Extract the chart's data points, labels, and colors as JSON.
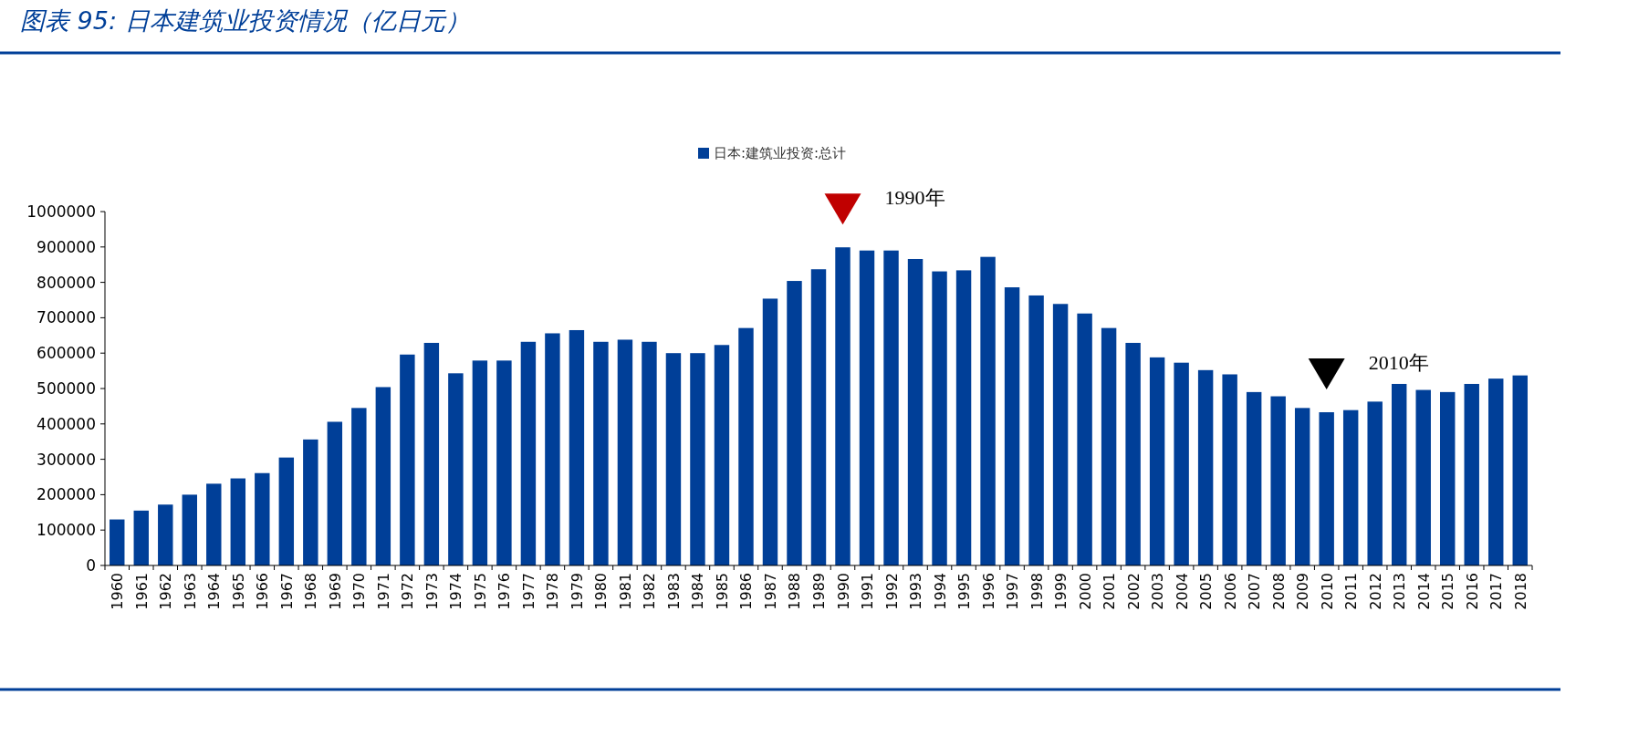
{
  "chart_data": {
    "type": "bar",
    "title": "图表 95:  日本建筑业投资情况（亿日元）",
    "categories": [
      "1960",
      "1961",
      "1962",
      "1963",
      "1964",
      "1965",
      "1966",
      "1967",
      "1968",
      "1969",
      "1970",
      "1971",
      "1972",
      "1973",
      "1974",
      "1975",
      "1976",
      "1977",
      "1978",
      "1979",
      "1980",
      "1981",
      "1982",
      "1983",
      "1984",
      "1985",
      "1986",
      "1987",
      "1988",
      "1989",
      "1990",
      "1991",
      "1992",
      "1993",
      "1994",
      "1995",
      "1996",
      "1997",
      "1998",
      "1999",
      "2000",
      "2001",
      "2002",
      "2003",
      "2004",
      "2005",
      "2006",
      "2007",
      "2008",
      "2009",
      "2010",
      "2011",
      "2012",
      "2013",
      "2014",
      "2015",
      "2016",
      "2017",
      "2018"
    ],
    "series": [
      {
        "name": "日本:建筑业投资:总计",
        "color": "#003f98",
        "values": [
          130000,
          155000,
          172000,
          200000,
          231000,
          246000,
          261000,
          305000,
          356000,
          406000,
          445000,
          504000,
          596000,
          629000,
          543000,
          579000,
          579000,
          632000,
          656000,
          665000,
          632000,
          638000,
          632000,
          600000,
          600000,
          623000,
          671000,
          754000,
          804000,
          837000,
          899000,
          890000,
          890000,
          866000,
          831000,
          834000,
          872000,
          786000,
          763000,
          739000,
          712000,
          671000,
          629000,
          588000,
          573000,
          552000,
          540000,
          490000,
          478000,
          445000,
          433000,
          439000,
          463000,
          513000,
          496000,
          490000,
          513000,
          528000,
          537000
        ]
      }
    ],
    "ylim": [
      0,
      1000000
    ],
    "yticks": [
      0,
      100000,
      200000,
      300000,
      400000,
      500000,
      600000,
      700000,
      800000,
      900000,
      1000000
    ],
    "annotations": [
      {
        "text": "1990年",
        "x": "1990",
        "y": 899000
      },
      {
        "text": "2010年",
        "x": "2010",
        "y": 433000
      }
    ],
    "legend": "top",
    "grid": false
  }
}
